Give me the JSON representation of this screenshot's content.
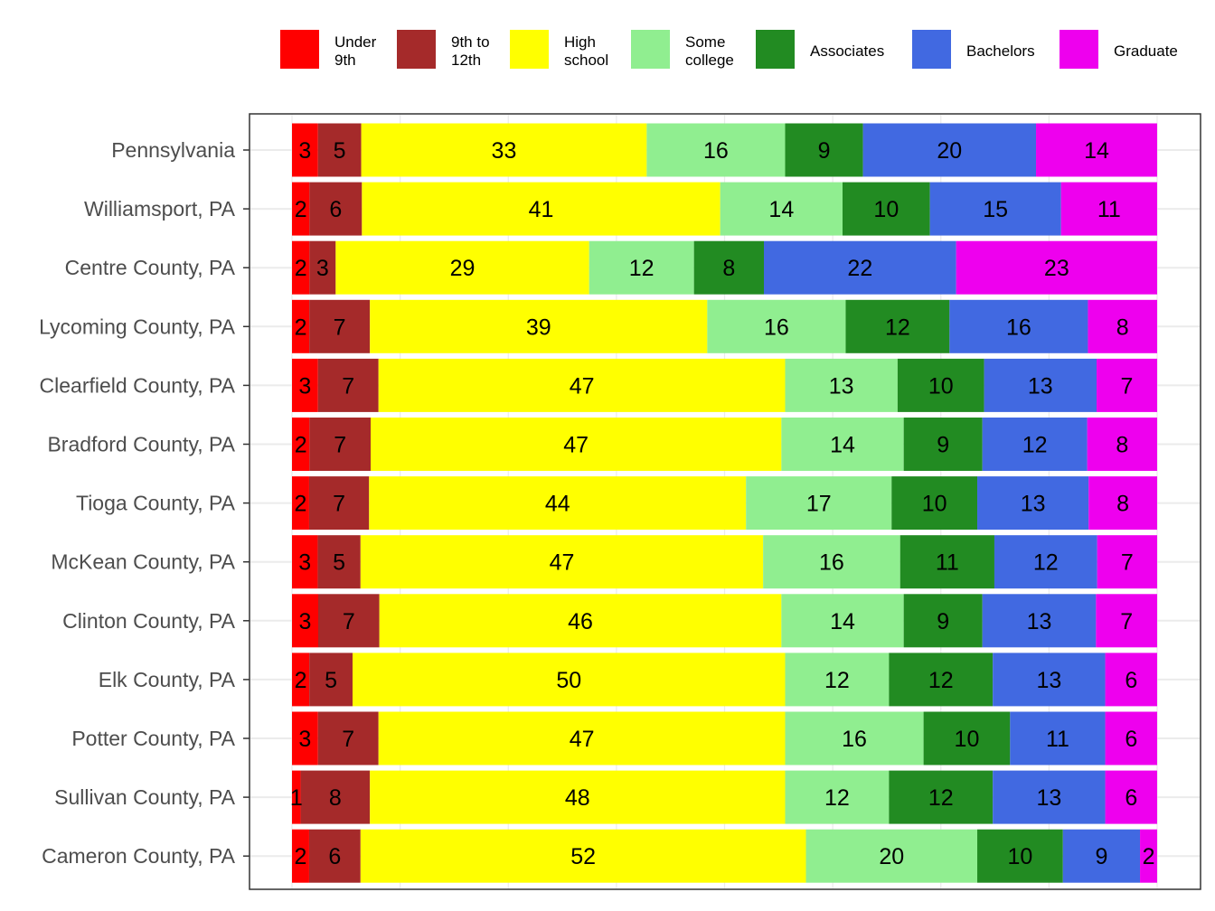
{
  "chart_data": {
    "type": "bar",
    "orientation": "horizontal",
    "stacked": true,
    "title": "",
    "xlabel": "",
    "ylabel": "",
    "grid": true,
    "legend_position": "top",
    "categories": [
      "Pennsylvania",
      "Williamsport, PA",
      "Centre County, PA",
      "Lycoming County, PA",
      "Clearfield County, PA",
      "Bradford County, PA",
      "Tioga County, PA",
      "McKean County, PA",
      "Clinton County, PA",
      "Elk County, PA",
      "Potter County, PA",
      "Sullivan County, PA",
      "Cameron County, PA"
    ],
    "series": [
      {
        "name": "Under 9th",
        "legend_lines": [
          "Under",
          "9th"
        ],
        "color": "#FF0000",
        "values": [
          3,
          2,
          2,
          2,
          3,
          2,
          2,
          3,
          3,
          2,
          3,
          1,
          2
        ]
      },
      {
        "name": "9th to 12th",
        "legend_lines": [
          "9th to",
          "12th"
        ],
        "color": "#A52A2A",
        "values": [
          5,
          6,
          3,
          7,
          7,
          7,
          7,
          5,
          7,
          5,
          7,
          8,
          6
        ]
      },
      {
        "name": "High school",
        "legend_lines": [
          "High",
          "school"
        ],
        "color": "#FFFF00",
        "values": [
          33,
          41,
          29,
          39,
          47,
          47,
          44,
          47,
          46,
          50,
          47,
          48,
          52
        ]
      },
      {
        "name": "Some college",
        "legend_lines": [
          "Some",
          "college"
        ],
        "color": "#90EE90",
        "values": [
          16,
          14,
          12,
          16,
          13,
          14,
          17,
          16,
          14,
          12,
          16,
          12,
          20
        ]
      },
      {
        "name": "Associates",
        "legend_lines": [
          "Associates"
        ],
        "color": "#228B22",
        "values": [
          9,
          10,
          8,
          12,
          10,
          9,
          10,
          11,
          9,
          12,
          10,
          12,
          10
        ]
      },
      {
        "name": "Bachelors",
        "legend_lines": [
          "Bachelors"
        ],
        "color": "#4169E1",
        "values": [
          20,
          15,
          22,
          16,
          13,
          12,
          13,
          12,
          13,
          13,
          11,
          13,
          9
        ]
      },
      {
        "name": "Graduate",
        "legend_lines": [
          "Graduate"
        ],
        "color": "#EE00EE",
        "values": [
          14,
          11,
          23,
          8,
          7,
          8,
          8,
          7,
          7,
          6,
          6,
          6,
          2
        ]
      }
    ]
  }
}
